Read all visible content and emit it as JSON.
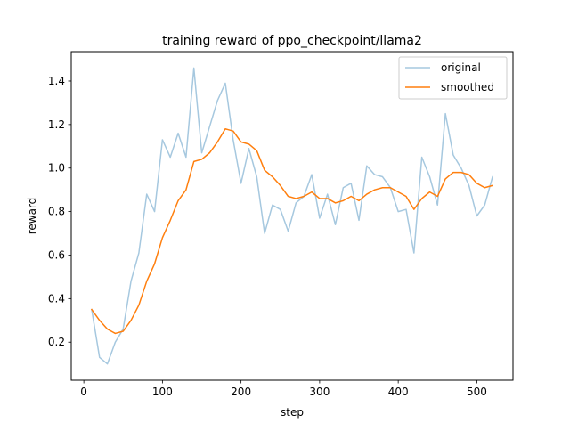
{
  "chart_data": {
    "type": "line",
    "title": "training reward of ppo_checkpoint/llama2",
    "xlabel": "step",
    "ylabel": "reward",
    "xlim": [
      -16,
      546
    ],
    "ylim": [
      0.025,
      1.535
    ],
    "xticks": [
      0,
      100,
      200,
      300,
      400,
      500
    ],
    "yticks": [
      0.2,
      0.4,
      0.6,
      0.8,
      1.0,
      1.2,
      1.4
    ],
    "grid": false,
    "legend_position": "top-right",
    "x": [
      10,
      20,
      30,
      40,
      50,
      60,
      70,
      80,
      90,
      100,
      110,
      120,
      130,
      140,
      150,
      160,
      170,
      180,
      190,
      200,
      210,
      220,
      230,
      240,
      250,
      260,
      270,
      280,
      290,
      300,
      310,
      320,
      330,
      340,
      350,
      360,
      370,
      380,
      390,
      400,
      410,
      420,
      430,
      440,
      450,
      460,
      470,
      480,
      490,
      500,
      510,
      520
    ],
    "series": [
      {
        "name": "original",
        "color": "#a6c8df",
        "values": [
          0.35,
          0.13,
          0.1,
          0.2,
          0.26,
          0.48,
          0.61,
          0.88,
          0.8,
          1.13,
          1.05,
          1.16,
          1.05,
          1.46,
          1.07,
          1.19,
          1.31,
          1.39,
          1.13,
          0.93,
          1.09,
          0.96,
          0.7,
          0.83,
          0.81,
          0.71,
          0.84,
          0.87,
          0.97,
          0.77,
          0.88,
          0.74,
          0.91,
          0.93,
          0.76,
          1.01,
          0.97,
          0.96,
          0.91,
          0.8,
          0.81,
          0.61,
          1.05,
          0.96,
          0.83,
          1.25,
          1.06,
          1.0,
          0.92,
          0.78,
          0.83,
          0.96
        ]
      },
      {
        "name": "smoothed",
        "color": "#ff7f0e",
        "values": [
          0.35,
          0.3,
          0.26,
          0.24,
          0.25,
          0.3,
          0.37,
          0.48,
          0.56,
          0.68,
          0.76,
          0.85,
          0.9,
          1.03,
          1.04,
          1.07,
          1.12,
          1.18,
          1.17,
          1.12,
          1.11,
          1.08,
          0.99,
          0.96,
          0.92,
          0.87,
          0.86,
          0.87,
          0.89,
          0.86,
          0.86,
          0.84,
          0.85,
          0.87,
          0.85,
          0.88,
          0.9,
          0.91,
          0.91,
          0.89,
          0.87,
          0.81,
          0.86,
          0.89,
          0.87,
          0.95,
          0.98,
          0.98,
          0.97,
          0.93,
          0.91,
          0.92
        ]
      }
    ]
  }
}
